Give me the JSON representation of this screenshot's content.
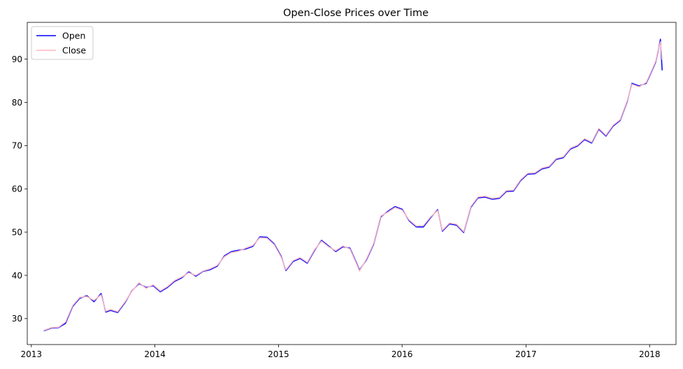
{
  "chart_data": {
    "type": "line",
    "title": "Open-Close Prices over Time",
    "xlabel": "",
    "ylabel": "",
    "xlim": [
      "2012-12-20",
      "2018-03-20"
    ],
    "ylim": [
      24,
      98.5
    ],
    "x_ticks": [
      "2013",
      "2014",
      "2015",
      "2016",
      "2017",
      "2018"
    ],
    "y_ticks": [
      30,
      40,
      50,
      60,
      70,
      80,
      90
    ],
    "grid": false,
    "legend_position": "top-left",
    "x": [
      "2013-02-08",
      "2013-03-01",
      "2013-03-22",
      "2013-04-12",
      "2013-05-03",
      "2013-05-24",
      "2013-06-14",
      "2013-07-05",
      "2013-07-26",
      "2013-08-09",
      "2013-08-23",
      "2013-09-13",
      "2013-10-04",
      "2013-10-25",
      "2013-11-15",
      "2013-12-06",
      "2013-12-27",
      "2014-01-17",
      "2014-02-07",
      "2014-02-28",
      "2014-03-21",
      "2014-04-11",
      "2014-05-02",
      "2014-05-23",
      "2014-06-13",
      "2014-07-04",
      "2014-07-25",
      "2014-08-15",
      "2014-09-05",
      "2014-09-26",
      "2014-10-17",
      "2014-11-07",
      "2014-11-28",
      "2014-12-19",
      "2015-01-09",
      "2015-01-23",
      "2015-02-13",
      "2015-03-06",
      "2015-03-27",
      "2015-04-17",
      "2015-05-08",
      "2015-05-29",
      "2015-06-19",
      "2015-07-10",
      "2015-07-31",
      "2015-08-21",
      "2015-08-28",
      "2015-09-18",
      "2015-10-09",
      "2015-10-30",
      "2015-11-20",
      "2015-12-11",
      "2016-01-01",
      "2016-01-22",
      "2016-02-12",
      "2016-03-04",
      "2016-03-25",
      "2016-04-15",
      "2016-04-29",
      "2016-05-20",
      "2016-06-10",
      "2016-07-01",
      "2016-07-22",
      "2016-08-12",
      "2016-09-02",
      "2016-09-23",
      "2016-10-14",
      "2016-11-04",
      "2016-11-25",
      "2016-12-16",
      "2017-01-06",
      "2017-01-27",
      "2017-02-17",
      "2017-03-10",
      "2017-03-31",
      "2017-04-21",
      "2017-05-12",
      "2017-06-02",
      "2017-06-23",
      "2017-07-14",
      "2017-08-04",
      "2017-08-25",
      "2017-09-15",
      "2017-10-06",
      "2017-10-27",
      "2017-11-10",
      "2017-12-01",
      "2017-12-22",
      "2018-01-05",
      "2018-01-19",
      "2018-01-26",
      "2018-02-02",
      "2018-02-07"
    ],
    "series": [
      {
        "name": "Open",
        "color": "#0000ff",
        "values": [
          27.2,
          27.8,
          27.9,
          28.9,
          32.8,
          34.7,
          35.3,
          33.9,
          35.8,
          31.5,
          31.9,
          31.4,
          33.6,
          36.4,
          38.1,
          37.2,
          37.6,
          36.2,
          37.2,
          38.6,
          39.4,
          40.8,
          39.8,
          40.9,
          41.3,
          42.1,
          44.5,
          45.5,
          45.8,
          46.1,
          46.7,
          48.9,
          48.8,
          47.3,
          44.4,
          41.1,
          43.2,
          43.9,
          42.8,
          45.7,
          48.1,
          46.8,
          45.5,
          46.6,
          46.3,
          42.6,
          41.2,
          43.6,
          47.2,
          53.5,
          54.8,
          55.9,
          55.3,
          52.6,
          51.2,
          51.2,
          53.3,
          55.2,
          50.2,
          51.9,
          51.6,
          49.9,
          55.7,
          57.9,
          58.1,
          57.6,
          57.8,
          59.4,
          59.5,
          61.9,
          63.4,
          63.5,
          64.6,
          65.0,
          66.8,
          67.2,
          69.2,
          69.9,
          71.4,
          70.6,
          73.8,
          72.2,
          74.5,
          75.8,
          80.2,
          84.4,
          83.8,
          84.4,
          86.8,
          89.3,
          91.8,
          94.6,
          87.5
        ]
      },
      {
        "name": "Close",
        "color": "#ffb6c1",
        "values": [
          27.3,
          27.9,
          28.0,
          29.2,
          33.0,
          34.9,
          35.1,
          34.2,
          35.5,
          31.7,
          32.1,
          31.6,
          33.8,
          36.3,
          38.3,
          37.0,
          37.8,
          36.4,
          37.4,
          38.8,
          39.6,
          40.6,
          40.0,
          41.0,
          41.5,
          42.3,
          44.3,
          45.3,
          45.6,
          46.3,
          46.9,
          48.7,
          48.6,
          47.1,
          44.2,
          41.3,
          43.4,
          44.1,
          43.0,
          45.9,
          47.9,
          46.6,
          45.7,
          46.8,
          46.1,
          42.4,
          41.0,
          43.8,
          47.4,
          53.7,
          54.6,
          55.7,
          55.1,
          52.8,
          51.4,
          51.5,
          53.5,
          55.0,
          50.4,
          52.1,
          51.8,
          50.1,
          55.9,
          58.1,
          58.3,
          57.8,
          58.0,
          59.6,
          59.7,
          62.1,
          63.6,
          63.7,
          64.8,
          65.2,
          67.0,
          67.4,
          69.4,
          70.1,
          71.6,
          70.8,
          74.0,
          72.4,
          74.7,
          76.0,
          80.4,
          84.2,
          83.6,
          84.6,
          87.0,
          89.5,
          92.0,
          94.0,
          89.9
        ]
      }
    ]
  }
}
